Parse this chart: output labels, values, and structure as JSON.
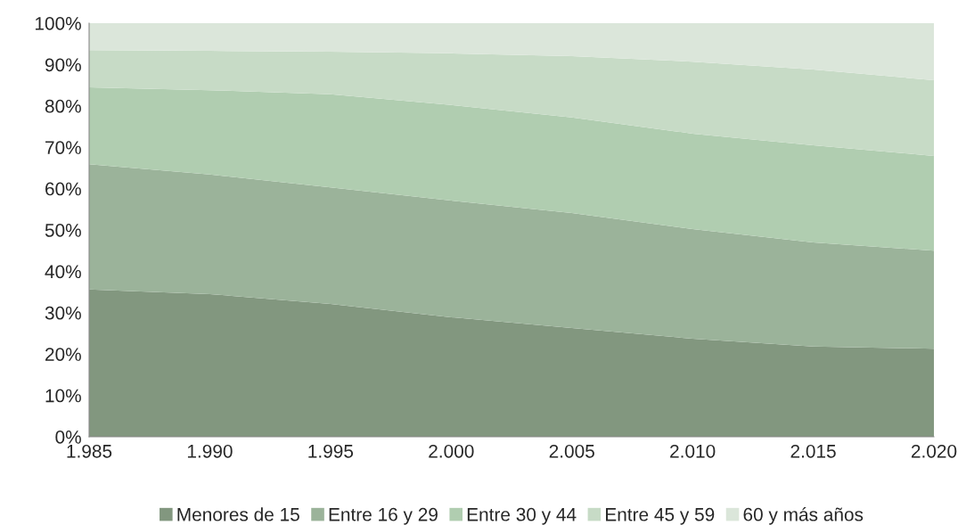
{
  "chart_data": {
    "type": "area",
    "stacked": true,
    "x": [
      1985,
      1990,
      1995,
      2000,
      2005,
      2010,
      2015,
      2020
    ],
    "series": [
      {
        "name": "Menores de 15",
        "color": "#82977f",
        "values": [
          35.6,
          34.5,
          32.1,
          28.9,
          26.3,
          23.7,
          21.8,
          21.3
        ]
      },
      {
        "name": "Entre 16 y 29",
        "color": "#9bb39a",
        "values": [
          30.3,
          28.9,
          28.2,
          28.2,
          27.8,
          26.5,
          25.2,
          23.7
        ]
      },
      {
        "name": "Entre 30 y 44",
        "color": "#b0cdb0",
        "values": [
          18.6,
          20.4,
          22.5,
          23.1,
          23.1,
          23.1,
          23.5,
          22.9
        ]
      },
      {
        "name": "Entre 45 y 59",
        "color": "#c7dbc6",
        "values": [
          9.0,
          9.5,
          10.3,
          12.5,
          14.8,
          17.4,
          18.3,
          18.3
        ]
      },
      {
        "name": "60 y más años",
        "color": "#dbe6da",
        "values": [
          6.5,
          6.7,
          6.9,
          7.3,
          8.0,
          9.3,
          11.2,
          13.8
        ]
      }
    ],
    "xlim": [
      1985,
      2020
    ],
    "xticks": [
      {
        "value": 1985,
        "label": "1.985"
      },
      {
        "value": 1990,
        "label": "1.990"
      },
      {
        "value": 1995,
        "label": "1.995"
      },
      {
        "value": 2000,
        "label": "2.000"
      },
      {
        "value": 2005,
        "label": "2.005"
      },
      {
        "value": 2010,
        "label": "2.010"
      },
      {
        "value": 2015,
        "label": "2.015"
      },
      {
        "value": 2020,
        "label": "2.020"
      }
    ],
    "ylim": [
      0,
      100
    ],
    "yticks": [
      {
        "value": 0,
        "label": "0%"
      },
      {
        "value": 10,
        "label": "10%"
      },
      {
        "value": 20,
        "label": "20%"
      },
      {
        "value": 30,
        "label": "30%"
      },
      {
        "value": 40,
        "label": "40%"
      },
      {
        "value": 50,
        "label": "50%"
      },
      {
        "value": 60,
        "label": "60%"
      },
      {
        "value": 70,
        "label": "70%"
      },
      {
        "value": 80,
        "label": "80%"
      },
      {
        "value": 90,
        "label": "90%"
      },
      {
        "value": 100,
        "label": "100%"
      }
    ],
    "legend": "bottom"
  }
}
